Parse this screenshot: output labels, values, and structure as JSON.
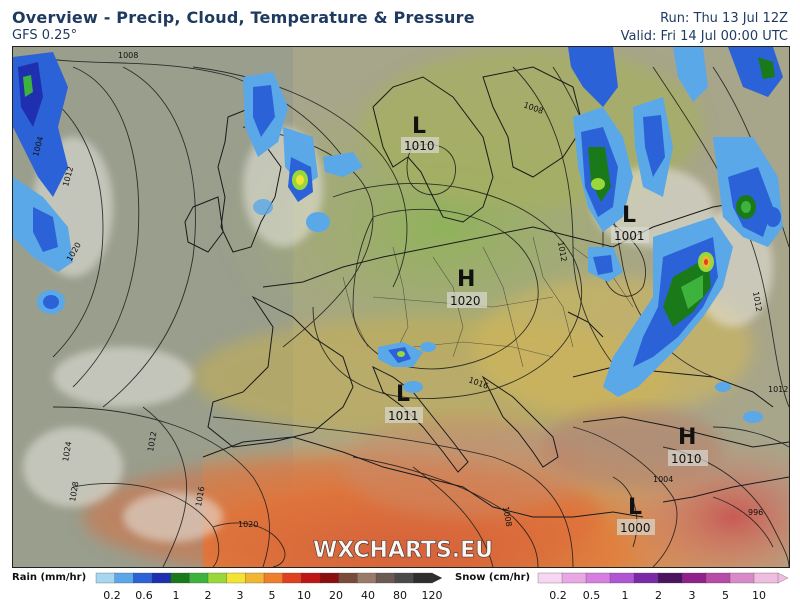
{
  "header": {
    "title": "Overview - Precip, Cloud, Temperature & Pressure",
    "model": "GFS 0.25°",
    "run": "Run: Thu 13 Jul 12Z",
    "valid": "Valid: Fri 14 Jul 00:00 UTC"
  },
  "watermark": "WXCHARTS.EU",
  "pressure_centers": [
    {
      "type": "L",
      "value": "1010"
    },
    {
      "type": "L",
      "value": "1001"
    },
    {
      "type": "H",
      "value": "1020"
    },
    {
      "type": "L",
      "value": "1011"
    },
    {
      "type": "H",
      "value": "1010"
    },
    {
      "type": "L",
      "value": "1000"
    }
  ],
  "isobar_labels": [
    "1008",
    "1004",
    "1012",
    "1020",
    "1008",
    "1012",
    "1016",
    "1012",
    "1024",
    "1028",
    "1020",
    "1016",
    "1012",
    "1008",
    "1004",
    "1012",
    "996"
  ],
  "legend": {
    "rain": {
      "title": "Rain (mm/hr)",
      "ticks": [
        "0.2",
        "0.6",
        "1",
        "2",
        "3",
        "5",
        "10",
        "20",
        "40",
        "80",
        "120"
      ],
      "colors": [
        "#a6d6f0",
        "#5aa8e8",
        "#2c62d8",
        "#1e2fb0",
        "#1a7a1a",
        "#3db33d",
        "#9ad83a",
        "#f2e430",
        "#f2b730",
        "#ef7f2a",
        "#e0401f",
        "#c01515",
        "#8c0f0f",
        "#7a4a3a",
        "#9a7a6a",
        "#6a5a52",
        "#4a4a4a",
        "#2e2e2e"
      ]
    },
    "snow": {
      "title": "Snow (cm/hr)",
      "ticks": [
        "0.2",
        "0.5",
        "1",
        "2",
        "3",
        "5",
        "10"
      ],
      "colors": [
        "#f6d6f2",
        "#e9a8e4",
        "#d77fe0",
        "#b255d4",
        "#7a2aa8",
        "#4a1460",
        "#90208a",
        "#b84aa8",
        "#d88ac8",
        "#eebde0"
      ]
    }
  }
}
